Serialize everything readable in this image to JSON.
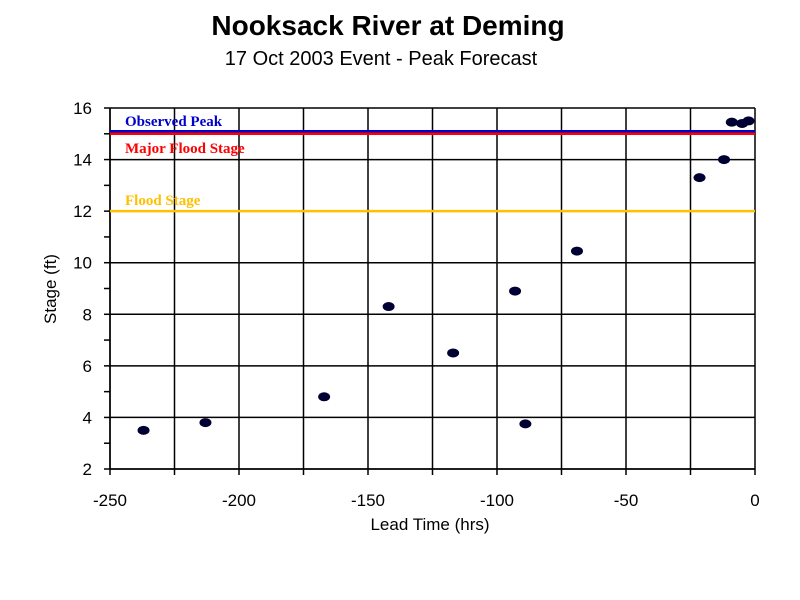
{
  "chart_data": {
    "type": "scatter",
    "title": "Nooksack River at Deming",
    "subtitle": "17 Oct 2003 Event - Peak Forecast",
    "xlabel": "Lead Time (hrs)",
    "ylabel": "Stage (ft)",
    "xlim": [
      -250,
      0
    ],
    "ylim": [
      2,
      16
    ],
    "x_ticks": [
      -250,
      -200,
      -150,
      -100,
      -50,
      0
    ],
    "y_ticks": [
      2,
      4,
      6,
      8,
      10,
      12,
      14,
      16
    ],
    "grid": true,
    "legend": "none",
    "marker_color": "#000033",
    "points": [
      {
        "x": -237,
        "y": 3.5
      },
      {
        "x": -213,
        "y": 3.8
      },
      {
        "x": -167,
        "y": 4.8
      },
      {
        "x": -142,
        "y": 8.3
      },
      {
        "x": -117,
        "y": 6.5
      },
      {
        "x": -93,
        "y": 8.9
      },
      {
        "x": -89,
        "y": 3.75
      },
      {
        "x": -69,
        "y": 10.45
      },
      {
        "x": -21.5,
        "y": 13.3
      },
      {
        "x": -12,
        "y": 14.0
      },
      {
        "x": -9,
        "y": 15.45
      },
      {
        "x": -5,
        "y": 15.4
      },
      {
        "x": -2.5,
        "y": 15.5
      }
    ],
    "reference_lines": [
      {
        "label": "Observed Peak",
        "y": 15.1,
        "color": "#0000cc"
      },
      {
        "label": "Major Flood Stage",
        "y": 15.0,
        "color": "#ff0000"
      },
      {
        "label": "Flood Stage",
        "y": 12.0,
        "color": "#ffc000"
      }
    ]
  }
}
